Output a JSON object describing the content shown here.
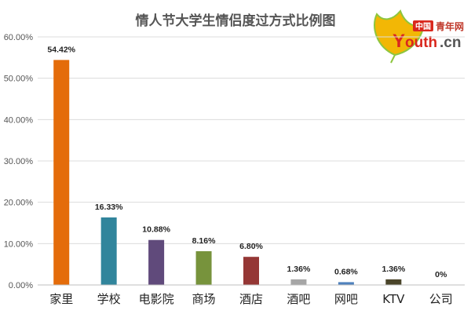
{
  "chart_data": {
    "type": "bar",
    "title": "情人节大学生情侣度过方式比例图",
    "categories": [
      "家里",
      "学校",
      "电影院",
      "商场",
      "酒店",
      "酒吧",
      "网吧",
      "KTV",
      "公司"
    ],
    "values": [
      54.42,
      16.33,
      10.88,
      8.16,
      6.8,
      1.36,
      0.68,
      1.36,
      0
    ],
    "data_labels": [
      "54.42%",
      "16.33%",
      "10.88%",
      "8.16%",
      "6.80%",
      "1.36%",
      "0.68%",
      "1.36%",
      "0%"
    ],
    "colors": [
      "#e46c0a",
      "#31859c",
      "#604a7b",
      "#77933c",
      "#953735",
      "#a6a6a6",
      "#4f81bd",
      "#4a452a",
      "#7f7f7f"
    ],
    "ylim": [
      0,
      60
    ],
    "yticks": [
      0,
      10,
      20,
      30,
      40,
      50,
      60
    ],
    "ytick_labels": [
      "0.00%",
      "10.00%",
      "20.00%",
      "30.00%",
      "40.00%",
      "50.00%",
      "60.00%"
    ],
    "xlabel": "",
    "ylabel": "",
    "grid": true,
    "legend": "none"
  },
  "logo": {
    "badge": "中国",
    "name": "青年网",
    "domain_first": "Y",
    "domain_mid": "outh",
    "domain_end": ".cn"
  }
}
